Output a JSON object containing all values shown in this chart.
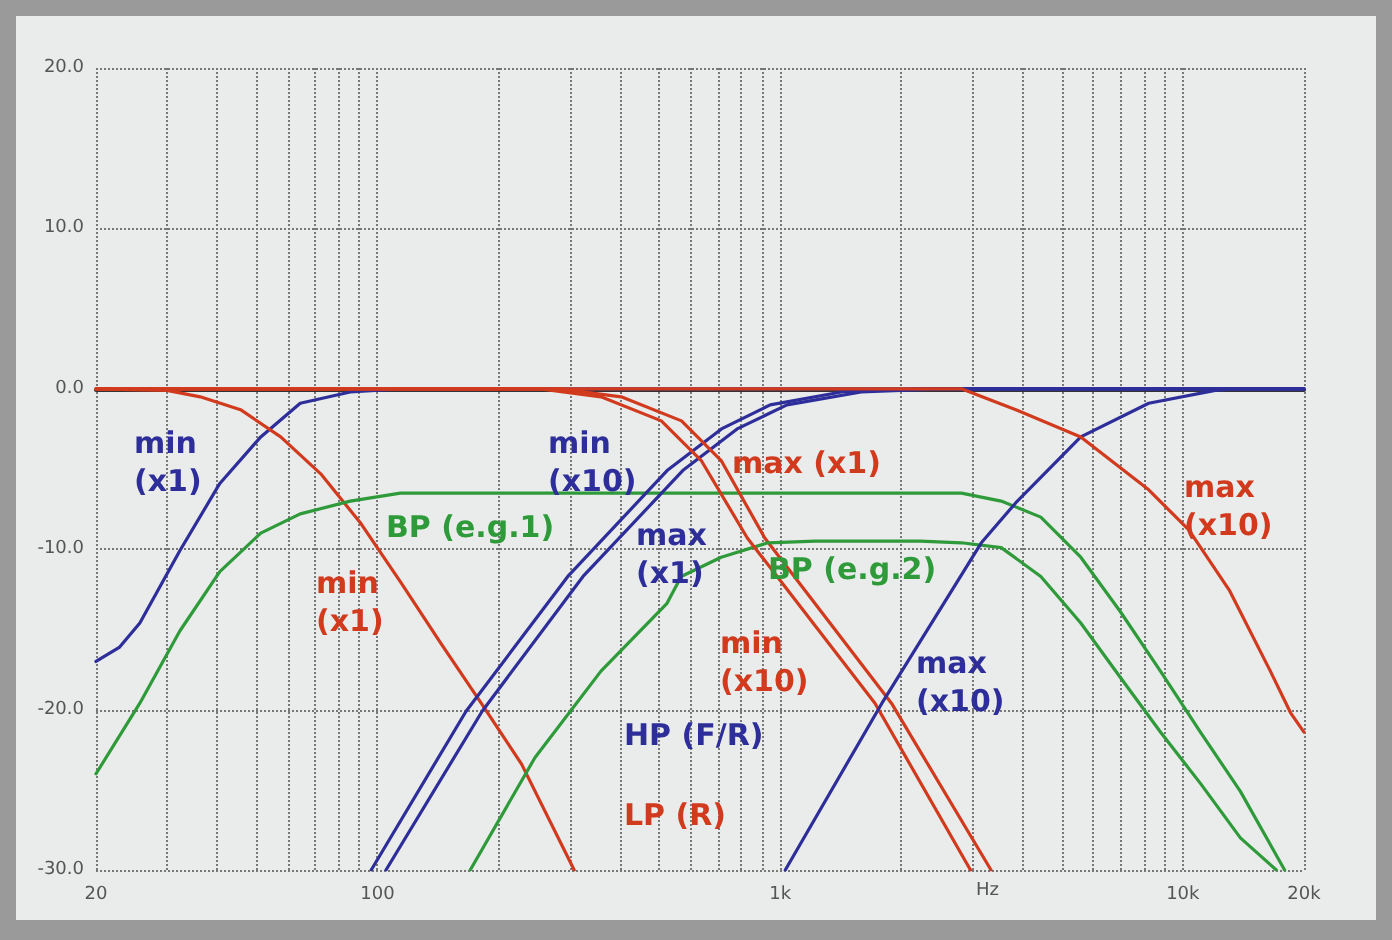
{
  "chart_data": {
    "type": "line",
    "xlabel": "Hz",
    "log": "x",
    "grid": true,
    "legend": false,
    "marker": "none",
    "line_style": "solid",
    "xlim": [
      20,
      20000
    ],
    "ylim": [
      -30,
      20
    ],
    "xticks": [
      {
        "value": 20,
        "label": "20"
      },
      {
        "value": 30,
        "label": null
      },
      {
        "value": 40,
        "label": null
      },
      {
        "value": 50,
        "label": null
      },
      {
        "value": 60,
        "label": null
      },
      {
        "value": 70,
        "label": null
      },
      {
        "value": 80,
        "label": null
      },
      {
        "value": 90,
        "label": null
      },
      {
        "value": 100,
        "label": "100"
      },
      {
        "value": 200,
        "label": null
      },
      {
        "value": 300,
        "label": null
      },
      {
        "value": 400,
        "label": null
      },
      {
        "value": 500,
        "label": null
      },
      {
        "value": 600,
        "label": null
      },
      {
        "value": 700,
        "label": null
      },
      {
        "value": 800,
        "label": null
      },
      {
        "value": 900,
        "label": null
      },
      {
        "value": 1000,
        "label": "1k"
      },
      {
        "value": 2000,
        "label": null
      },
      {
        "value": 3000,
        "label": null
      },
      {
        "value": 4000,
        "label": null
      },
      {
        "value": 5000,
        "label": null
      },
      {
        "value": 6000,
        "label": null
      },
      {
        "value": 7000,
        "label": null
      },
      {
        "value": 8000,
        "label": null
      },
      {
        "value": 9000,
        "label": null
      },
      {
        "value": 10000,
        "label": "10k"
      },
      {
        "value": 20000,
        "label": "20k"
      }
    ],
    "yticks": [
      {
        "value": -30,
        "label": "-30.0"
      },
      {
        "value": -20,
        "label": "-20.0"
      },
      {
        "value": -10,
        "label": "-10.0"
      },
      {
        "value": 0,
        "label": "0.0"
      },
      {
        "value": 10,
        "label": "10.0"
      },
      {
        "value": 20,
        "label": "20.0"
      }
    ],
    "series": [
      {
        "name": "min (x1)",
        "color": "#2e2e9a",
        "x": [
          20,
          22.9,
          25.7,
          32.3,
          40.6,
          51.3,
          64.3,
          85.6,
          114,
          20000
        ],
        "values": [
          -17,
          -16.1,
          -14.6,
          -10.1,
          -5.9,
          -3,
          -0.9,
          -0.2,
          0,
          0
        ]
      },
      {
        "name": "min (x1)",
        "color": "#d23a1e",
        "x": [
          20,
          30,
          36.3,
          45.7,
          57.5,
          72.3,
          91,
          114.5,
          144,
          181,
          228,
          308
        ],
        "values": [
          0,
          -0.1,
          -0.5,
          -1.3,
          -3,
          -5.3,
          -8.4,
          -12.1,
          -15.9,
          -19.6,
          -23.4,
          -30
        ]
      },
      {
        "name": "BP (e.g.1)",
        "color": "#2e9a3a",
        "x": [
          20,
          25.7,
          32.3,
          40.6,
          51.3,
          64.3,
          85.6,
          114,
          1000,
          2820,
          3540,
          4440,
          5580,
          7000,
          8800,
          11060,
          13900,
          17900
        ],
        "values": [
          -24,
          -19.6,
          -15.1,
          -11.4,
          -9,
          -7.8,
          -7,
          -6.5,
          -6.5,
          -6.5,
          -7,
          -8,
          -10.5,
          -13.9,
          -17.6,
          -21.4,
          -25.1,
          -30
        ]
      },
      {
        "name": "min (x10)",
        "color": "#2e2e9a",
        "x": [
          96.5,
          166,
          297,
          524,
          715,
          945,
          1420,
          2230,
          20000
        ],
        "values": [
          -30,
          -20.1,
          -11.7,
          -5.1,
          -2.5,
          -1,
          -0.2,
          0,
          0
        ]
      },
      {
        "name": "max (x1)",
        "color": "#2e2e9a",
        "x": [
          105,
          182,
          324,
          573,
          782,
          1040,
          1590,
          2500,
          20000
        ],
        "values": [
          -30,
          -20.1,
          -11.7,
          -5.1,
          -2.5,
          -1,
          -0.2,
          0,
          0
        ]
      },
      {
        "name": "max (x1)",
        "color": "#d23a1e",
        "x": [
          20,
          284,
          403,
          569,
          715,
          916,
          1890,
          3340
        ],
        "values": [
          0,
          0,
          -0.5,
          -2,
          -4.5,
          -9.3,
          -19.6,
          -30
        ]
      },
      {
        "name": "BP (e.g.2)",
        "color": "#2e9a3a",
        "x": [
          170,
          246,
          359,
          523,
          568,
          714,
          933,
          1222,
          2230,
          2820,
          3540,
          4440,
          5580,
          7000,
          8800,
          11060,
          13900,
          17070
        ],
        "values": [
          -30,
          -23,
          -17.6,
          -13.4,
          -11.7,
          -10.5,
          -9.6,
          -9.5,
          -9.5,
          -9.6,
          -9.9,
          -11.7,
          -14.6,
          -18,
          -21.4,
          -24.6,
          -28,
          -30
        ]
      },
      {
        "name": "min (x10)",
        "color": "#d23a1e",
        "x": [
          20,
          254,
          359,
          507,
          638,
          829,
          1720,
          2970
        ],
        "values": [
          0,
          0,
          -0.5,
          -2,
          -4.5,
          -9.3,
          -19.6,
          -30
        ]
      },
      {
        "name": "max (x10)",
        "color": "#2e2e9a",
        "x": [
          1030,
          1790,
          3160,
          3850,
          5580,
          8230,
          12040,
          13380,
          20000
        ],
        "values": [
          -30,
          -19.6,
          -9.6,
          -7.1,
          -3,
          -0.9,
          -0.1,
          0,
          0
        ]
      },
      {
        "name": "max (x10)",
        "color": "#d23a1e",
        "x": [
          20,
          2820,
          3850,
          5580,
          8230,
          10350,
          13080,
          16500,
          18520,
          20000
        ],
        "values": [
          0,
          0,
          -1.3,
          -3,
          -6.3,
          -8.8,
          -12.6,
          -17.6,
          -20.2,
          -21.4
        ]
      }
    ],
    "annotations": [
      "HP (F/R)",
      "LP (R)"
    ]
  }
}
